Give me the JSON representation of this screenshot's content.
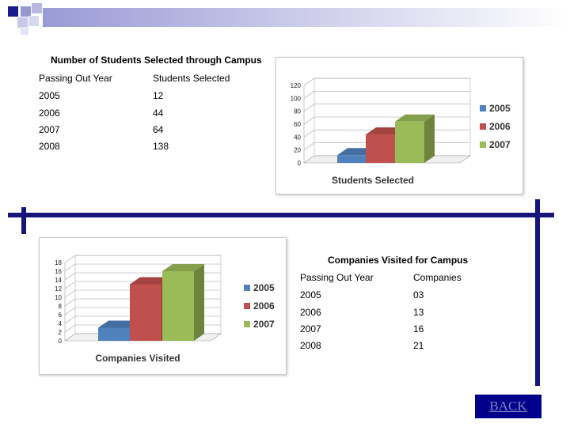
{
  "colors": {
    "navy": "#16167a",
    "blue": "#4f81bd",
    "red": "#c0504d",
    "green": "#9bbb59"
  },
  "table1": {
    "title": "Number of Students Selected through Campus",
    "headers": [
      "Passing Out Year",
      "Students Selected"
    ],
    "rows": [
      [
        "2005",
        "12"
      ],
      [
        "2006",
        "44"
      ],
      [
        "2007",
        "64"
      ],
      [
        "2008",
        "138"
      ]
    ]
  },
  "table2": {
    "title": "Companies Visited for Campus",
    "headers": [
      "Passing Out Year",
      "Companies"
    ],
    "rows": [
      [
        "2005",
        "03"
      ],
      [
        "2006",
        "13"
      ],
      [
        "2007",
        "16"
      ],
      [
        "2008",
        "21"
      ]
    ]
  },
  "back_label": "BACK",
  "chart_data": [
    {
      "type": "bar",
      "title": "Students Selected",
      "categories": [
        "2005",
        "2006",
        "2007"
      ],
      "values": [
        12,
        44,
        64
      ],
      "ylim": [
        0,
        120
      ],
      "yticks": [
        "0",
        "20",
        "40",
        "60",
        "80",
        "100",
        "120"
      ],
      "legend": [
        "2005",
        "2006",
        "2007"
      ]
    },
    {
      "type": "bar",
      "title": "Companies Visited",
      "categories": [
        "2005",
        "2006",
        "2007"
      ],
      "values": [
        3,
        13,
        16
      ],
      "ylim": [
        0,
        18
      ],
      "yticks": [
        "0",
        "2",
        "4",
        "6",
        "8",
        "10",
        "12",
        "14",
        "16",
        "18"
      ],
      "legend": [
        "2005",
        "2006",
        "2007"
      ]
    }
  ]
}
